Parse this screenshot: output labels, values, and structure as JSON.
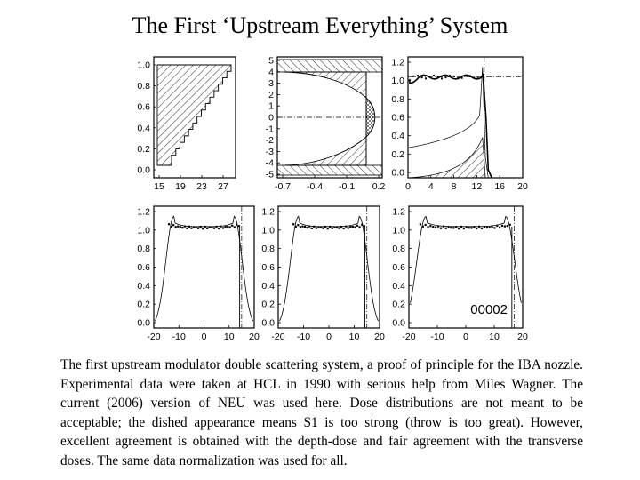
{
  "slide": {
    "title": "The First ‘Upstream Everything’ System",
    "caption": "The first upstream modulator double scattering system, a proof of principle for the IBA nozzle. Experimental data were taken at HCL in 1990 with serious help from Miles Wagner. The current (2006) version of NEU was used here. Dose distributions are not meant to be acceptable; the dished appearance means S1 is too strong (throw is too great). However, excellent agreement is obtained with the depth-dose and fair agreement with the transverse doses. The same data normalization was used for all."
  },
  "figure": {
    "code_label": "00002",
    "panels": {
      "modulator_weights": {
        "y_ticks": [
          "1.0",
          "0.8",
          "0.6",
          "0.4",
          "0.2",
          "0.0"
        ],
        "x_ticks": [
          "15",
          "19",
          "23",
          "27"
        ]
      },
      "scatterer_profile": {
        "y_ticks": [
          "5",
          "4",
          "3",
          "2",
          "1",
          "0",
          "-1",
          "-2",
          "-3",
          "-4",
          "-5"
        ],
        "x_ticks": [
          "-0.7",
          "-0.4",
          "-0.1",
          "0.2"
        ]
      },
      "depth_dose": {
        "y_ticks": [
          "1.2",
          "1.0",
          "0.8",
          "0.6",
          "0.4",
          "0.2",
          "0.0"
        ],
        "x_ticks": [
          "0",
          "4",
          "8",
          "12",
          "16",
          "20"
        ]
      },
      "transverse": {
        "y_ticks": [
          "1.2",
          "1.0",
          "0.8",
          "0.6",
          "0.4",
          "0.2",
          "0.0"
        ],
        "x_ticks": [
          "-20",
          "-10",
          "0",
          "10",
          "20"
        ]
      }
    }
  }
}
